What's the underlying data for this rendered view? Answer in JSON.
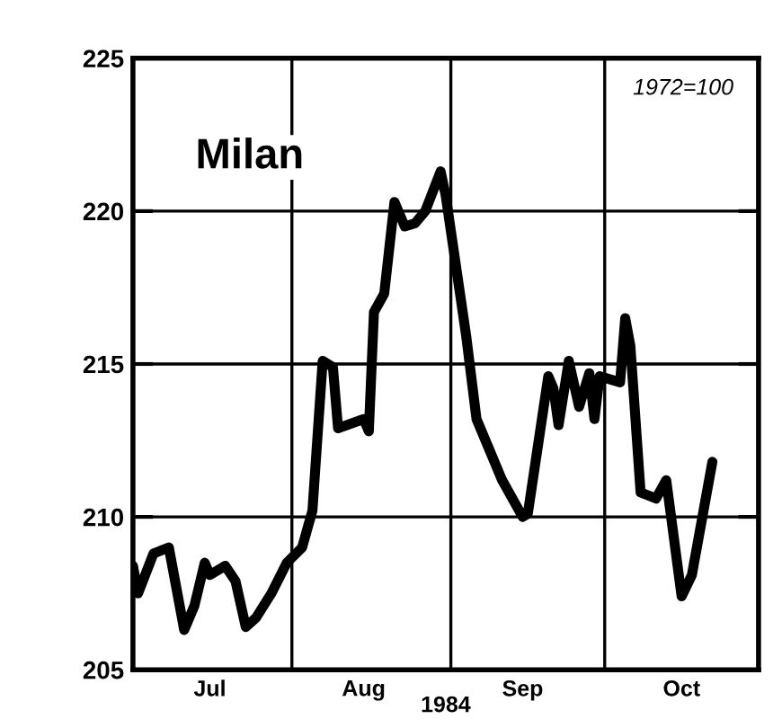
{
  "chart_data": {
    "type": "line",
    "title": "Milan",
    "xlabel": "1984",
    "annotations": [
      "1972=100"
    ],
    "x": [
      "1984-07-01",
      "1984-07-02",
      "1984-07-05",
      "1984-07-08",
      "1984-07-11",
      "1984-07-13",
      "1984-07-15",
      "1984-07-16",
      "1984-07-19",
      "1984-07-21",
      "1984-07-23",
      "1984-07-25",
      "1984-07-28",
      "1984-07-31",
      "1984-08-03",
      "1984-08-05",
      "1984-08-07",
      "1984-08-09",
      "1984-08-10",
      "1984-08-15",
      "1984-08-16",
      "1984-08-17",
      "1984-08-19",
      "1984-08-21",
      "1984-08-23",
      "1984-08-25",
      "1984-08-27",
      "1984-08-30",
      "1984-08-31",
      "1984-09-04",
      "1984-09-06",
      "1984-09-11",
      "1984-09-15",
      "1984-09-16",
      "1984-09-20",
      "1984-09-21",
      "1984-09-22",
      "1984-09-24",
      "1984-09-26",
      "1984-09-28",
      "1984-09-29",
      "1984-09-30",
      "1984-10-04",
      "1984-10-05",
      "1984-10-06",
      "1984-10-08",
      "1984-10-11",
      "1984-10-13",
      "1984-10-16",
      "1984-10-18",
      "1984-10-22"
    ],
    "series": [
      {
        "color": "#000000",
        "values": [
          208.4,
          207.5,
          208.8,
          209.0,
          206.3,
          207.1,
          208.5,
          208.1,
          208.4,
          207.9,
          206.4,
          206.7,
          207.5,
          208.5,
          209.0,
          210.2,
          215.1,
          214.9,
          212.9,
          213.2,
          212.8,
          216.7,
          217.3,
          220.3,
          219.5,
          219.6,
          220.0,
          221.3,
          220.5,
          215.9,
          213.2,
          211.2,
          210.0,
          210.1,
          214.6,
          214.2,
          213.0,
          215.1,
          213.6,
          214.7,
          213.2,
          214.6,
          214.4,
          216.5,
          215.6,
          210.8,
          210.6,
          211.2,
          207.4,
          208.1,
          211.8
        ]
      }
    ],
    "xlim": [
      "1984-07-01",
      "1984-10-31"
    ],
    "xticks": [
      {
        "value": "1984-07-16",
        "label": "Jul"
      },
      {
        "value": "1984-08-01",
        "label": null
      },
      {
        "value": "1984-08-15",
        "label": "Aug"
      },
      {
        "value": "1984-09-01",
        "label": null
      },
      {
        "value": "1984-09-15",
        "label": "Sep"
      },
      {
        "value": "1984-10-01",
        "label": null
      },
      {
        "value": "1984-10-16",
        "label": "Oct"
      }
    ],
    "ylim": [
      205,
      225
    ],
    "yticks": [
      205,
      210,
      215,
      220,
      225
    ],
    "grid": true,
    "marker": "none",
    "line_style": "solid"
  }
}
